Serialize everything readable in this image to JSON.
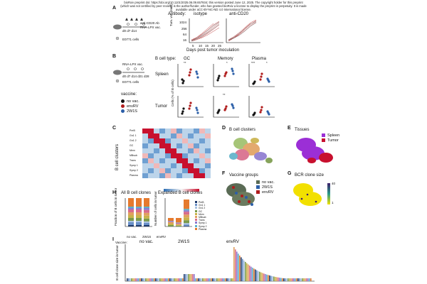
{
  "header": {
    "line1": "bioRxiv preprint doi: https://doi.org/10.1101/2025.06.09.657934; this version posted June 12, 2025. The copyright holder for this preprint",
    "line2": "(which was not certified by peer review) is the author/funder, who has granted bioRxiv a license to display the preprint in perpetuity. It is made",
    "line3": "available under aCC-BY-NC-ND 4.0 International license."
  },
  "panels": {
    "a": "A",
    "b": "B",
    "c": "C",
    "d": "D",
    "e": "E",
    "f": "F",
    "g": "G",
    "h": "H",
    "i": "I"
  },
  "panel_a": {
    "treatment1": "anti-CD20 Ab",
    "treatment2": "RNA-LPX vac.",
    "days": "d0 d7 d14",
    "cells": "E0771 cells",
    "antibody_label": "Antibody:",
    "isotype": "isotype",
    "anticd20": "anti-CD20",
    "ylabel": "Tum. vol. (mm³)",
    "xlabel": "Days post tumor inoculation",
    "yticks": [
      "1024",
      "256",
      "64",
      "16"
    ],
    "xticks": [
      "5",
      "10",
      "15",
      "20",
      "25"
    ]
  },
  "panel_b": {
    "treatment": "RNA-LPX vac.",
    "days": "d0 d7 d14 d21 d28",
    "cells": "E0771 cells",
    "bcell_type": "B cell type:",
    "gc": "GC",
    "memory": "Memory",
    "plasma": "Plasma",
    "spleen": "Spleen",
    "tumor": "Tumor",
    "ylabel": "Cells (% of B cells)",
    "vaccine_label": "vaccine:",
    "vaccine_groups": [
      {
        "name": "no vac.",
        "color": "#111111"
      },
      {
        "name": "envRV",
        "color": "#b01c1c"
      },
      {
        "name": "2W1S",
        "color": "#2c5fa8"
      }
    ],
    "sig_gc_spleen": "**",
    "sig_mem_spleen": "*",
    "sig_pl_spleen_a": "***",
    "sig_pl_spleen_b": "*",
    "sig_mem_tumor": "**"
  },
  "panel_c": {
    "ylabel": "B cell clusters",
    "rows": [
      "PreB",
      "Gn1 1",
      "Gn1 2",
      "GC",
      "Mem",
      "MBsub",
      "Trans",
      "Symp 1",
      "Symp 2",
      "Plasma"
    ]
  },
  "panel_d": {
    "title": "B cell clusters"
  },
  "panel_e": {
    "title": "Tissues",
    "legend": [
      {
        "name": "Spleen",
        "color": "#9b2fd6"
      },
      {
        "name": "Tumor",
        "color": "#c8102e"
      }
    ]
  },
  "panel_f": {
    "title": "Vaccine groups",
    "legend": [
      {
        "name": "no vac.",
        "color": "#5a6b55"
      },
      {
        "name": "2W1S",
        "color": "#2c5fa8"
      },
      {
        "name": "envRV",
        "color": "#b01c1c"
      }
    ]
  },
  "panel_g": {
    "title": "BCR clone size",
    "scale_top": "40",
    "scale_bottom": "1"
  },
  "panel_h": {
    "title1": "All B cell clones",
    "title2": "Expanded B cell clones",
    "ylabel1": "Fraction of B cells in tumor",
    "ylabel2": "Number of cells in tumor",
    "groups": [
      "no vac.",
      "2W1S",
      "envRV"
    ],
    "legend": [
      "PreB",
      "Gn1 1",
      "Gn1 2",
      "GC",
      "Mem",
      "MBsub",
      "Trans",
      "Symp 1",
      "Symp 2",
      "Plasma"
    ]
  },
  "panel_i": {
    "vaccine": "Vaccine:",
    "ylabel": "B cell clone size in tumor",
    "groups": [
      "no vac.",
      "2W1S",
      "envRV"
    ]
  }
}
